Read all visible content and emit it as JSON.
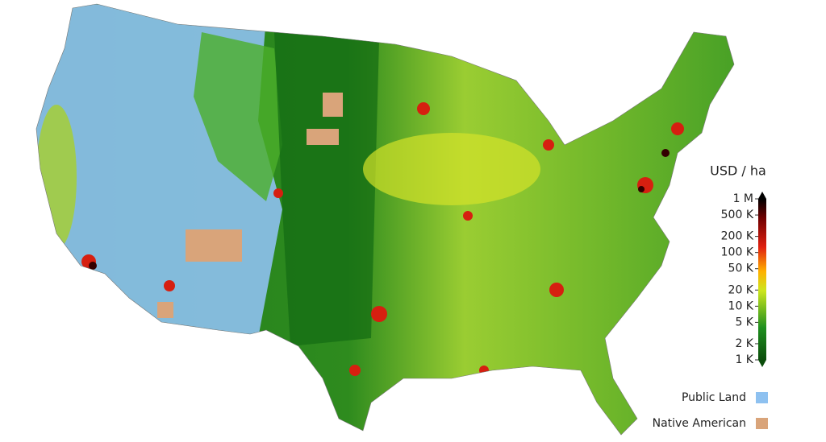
{
  "colorbar": {
    "title": "USD / ha",
    "scale": "log",
    "lim": [
      1000,
      1000000
    ],
    "ticks": [
      {
        "value": 1000000,
        "label": "1 M"
      },
      {
        "value": 500000,
        "label": "500 K"
      },
      {
        "value": 200000,
        "label": "200 K"
      },
      {
        "value": 100000,
        "label": "100 K"
      },
      {
        "value": 50000,
        "label": "50 K"
      },
      {
        "value": 20000,
        "label": "20 K"
      },
      {
        "value": 10000,
        "label": "10 K"
      },
      {
        "value": 5000,
        "label": "5 K"
      },
      {
        "value": 2000,
        "label": "2 K"
      },
      {
        "value": 1000,
        "label": "1 K"
      }
    ]
  },
  "legend": [
    {
      "label": "Public Land",
      "color": "#8ec1f0"
    },
    {
      "label": "Native American",
      "color": "#d9a47a"
    }
  ]
}
